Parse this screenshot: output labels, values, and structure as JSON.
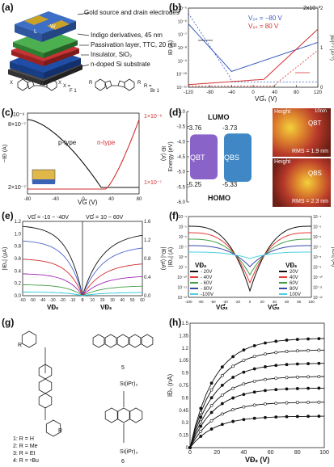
{
  "panels": {
    "a": {
      "label": "(a)",
      "layers": [
        "Gold source and drain electrodes",
        "Indigo derivatives, 45 nm",
        "Passivation layer, TTC, 20 nm",
        "Insulator, SiO₂",
        "n-doped Si substrate"
      ],
      "dims": [
        "L",
        "W"
      ],
      "table": {
        "rows": [
          [
            "X =",
            "R ="
          ],
          [
            "F",
            "1",
            "Br",
            "1"
          ],
          [
            "Cl",
            "2",
            "Ph",
            "2"
          ],
          [
            "Br",
            "3"
          ]
        ]
      },
      "mol_labels": [
        "X",
        "X",
        "R",
        "R"
      ]
    },
    "b": {
      "label": "(b)",
      "legend": [
        "V₀ₛ = −80 V",
        "V₀ₛ = 80 V"
      ],
      "ylabel_left": "IƉ (A)",
      "ylabel_right": "|IƉ|¹ᐟ² (A¹ᐟ²)",
      "xlabel": "VƓₛ (V)",
      "right_exp": "2x10⁻³",
      "xticks": [
        "-120",
        "-80",
        "-40",
        "0",
        "40",
        "80",
        "120"
      ],
      "yticks_left": [
        "10⁻⁵",
        "10⁻⁶",
        "10⁻⁷",
        "10⁻⁸",
        "10⁻⁹",
        "10⁻¹⁰",
        "10⁻¹¹"
      ],
      "yticks_right": [
        "2",
        "1",
        "0"
      ],
      "colors": {
        "p": "#3a5bbf",
        "n": "#d32f2f"
      }
    },
    "c": {
      "label": "(c)",
      "ylabel_left": "−IƉ (A)",
      "ylabel_right": "IƉ (A)",
      "xlabel": "VƓ (V)",
      "left_top": "10⁻⁶",
      "left_mid": "8×10⁻⁷",
      "left_bot": "2×10⁻⁷",
      "right_top": "1×10⁻⁶",
      "right_bot": "1×10⁻⁷",
      "xticks": [
        "-80",
        "-40",
        "0",
        "40",
        "80"
      ],
      "p_label": "p-type",
      "n_label": "n-type"
    },
    "d": {
      "label": "(d)",
      "ylabel": "Energy (eV)",
      "yticks": [
        "-3.0",
        "-3.5",
        "-4.0",
        "-4.5",
        "-5.0",
        "-5.5",
        "-6.0"
      ],
      "lumo": "LUMO",
      "homo": "HOMO",
      "qbt": {
        "name": "QBT",
        "lumo": "-3.76",
        "homo": "-5.25"
      },
      "qbs": {
        "name": "QBS",
        "lumo": "-3.73",
        "homo": "-5.33"
      },
      "afm1": {
        "tag": "Height",
        "name": "QBT",
        "rms": "RMS = 1.9 nm",
        "scale": "10nm"
      },
      "afm2": {
        "tag": "Height",
        "name": "QBS",
        "rms": "RMS = 2.3 nm"
      }
    },
    "e": {
      "label": "(e)",
      "left_title": "VƓ = -10 ~ -40V",
      "right_title": "VƓ = 10 ~ 60V",
      "ylabel_left": "|IƉₛ| (μA)",
      "ylabel_right": "|IƉₛ| (μA)",
      "xlabel_left": "VƉₛ",
      "xlabel_right": "VƉₛ",
      "yticks_left": [
        "1.2",
        "1.0",
        "0.8",
        "0.6",
        "0.4",
        "0.2",
        "0.0"
      ],
      "yticks_right": [
        "1.6",
        "1.2",
        "0.8",
        "0.4",
        "0.0"
      ],
      "xticks_left": [
        "-60",
        "-50",
        "-40",
        "-30",
        "-20",
        "-10",
        "0"
      ],
      "xticks_right": [
        "0",
        "10",
        "20",
        "30",
        "40",
        "50",
        "60"
      ]
    },
    "f": {
      "label": "(f)",
      "ylabel_left": "|IƉₛ| (A)",
      "ylabel_right": "|IƉₛ| (A)",
      "xlabel_left": "VƓₛ",
      "xlabel_right": "VƓₛ",
      "legend_left_title": "VƉₛ",
      "legend_left": [
        "- 20V",
        "- 40V",
        "- 60V",
        "- 80V",
        "-100V"
      ],
      "legend_right_title": "VƉₛ",
      "legend_right": [
        "20V",
        "40V",
        "60V",
        "80V",
        "100V"
      ],
      "colors": [
        "#111111",
        "#e53935",
        "#43a047",
        "#3949ab",
        "#4dd0e1"
      ],
      "xticks": [
        "-100",
        "-80",
        "-60",
        "-40",
        "-20",
        "0",
        "20",
        "40",
        "60",
        "80",
        "100"
      ],
      "yticks": [
        "10⁻⁴",
        "10⁻⁵",
        "10⁻⁶",
        "10⁻⁷",
        "10⁻⁸",
        "10⁻⁹",
        "10⁻¹⁰",
        "10⁻¹¹",
        "10⁻¹²"
      ]
    },
    "g": {
      "label": "(g)",
      "compounds": [
        "1: R = H",
        "2: R = Me",
        "3: R = Et",
        "4: R = ⁿBu"
      ],
      "num5": "5",
      "num6": "6",
      "r_top": "R",
      "r_bot": "R",
      "si_top": "Si(iPr)₃",
      "si_bot": "Si(iPr)₃"
    },
    "h": {
      "label": "(h)",
      "ylabel": "IƉₛ (nA)",
      "xlabel": "VƉₛ (V)",
      "yticks": [
        "1.5",
        "1.35",
        "1.2",
        "1.05",
        "0.9",
        "0.75",
        "0.6",
        "0.45",
        "0.3",
        "0.15",
        "0"
      ],
      "xticks": [
        "0",
        "20",
        "40",
        "60",
        "80",
        "100"
      ]
    }
  }
}
